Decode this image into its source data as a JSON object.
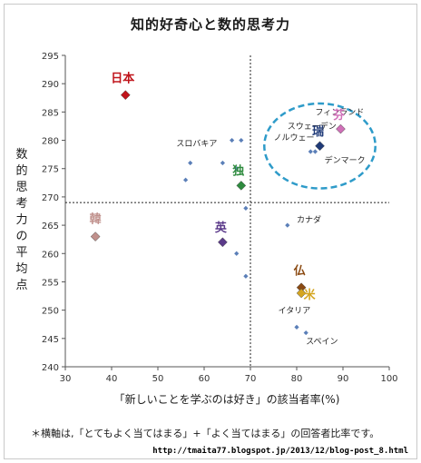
{
  "chart_data": {
    "type": "scatter",
    "title": "知的好奇心と数的思考力",
    "xlabel": "「新しいことを学ぶのは好き」の該当者率(%)",
    "ylabel": "数的思考力の平均点",
    "xlim": [
      30,
      100
    ],
    "ylim": [
      240,
      295
    ],
    "xticks": [
      30,
      40,
      50,
      60,
      70,
      80,
      90,
      100
    ],
    "yticks": [
      240,
      245,
      250,
      255,
      260,
      265,
      270,
      275,
      280,
      285,
      290,
      295
    ],
    "reference_lines": {
      "x": 70,
      "y": 269
    },
    "highlighted_points": [
      {
        "label": "日本",
        "x": 43,
        "y": 288,
        "color": "#c0141b"
      },
      {
        "label": "韓",
        "x": 36.5,
        "y": 263,
        "color": "#c0908c"
      },
      {
        "label": "独",
        "x": 68,
        "y": 272,
        "color": "#2e8b3e"
      },
      {
        "label": "英",
        "x": 64,
        "y": 262,
        "color": "#5b3a8a"
      },
      {
        "label": "瑞",
        "x": 85,
        "y": 279,
        "color": "#1f3a78"
      },
      {
        "label": "芬",
        "x": 89.5,
        "y": 282,
        "color": "#d070b8"
      },
      {
        "label": "仏",
        "x": 81,
        "y": 254,
        "color": "#8b4a12"
      },
      {
        "label": "米",
        "x": 81,
        "y": 253,
        "color": "#d4a520"
      }
    ],
    "small_points": [
      {
        "x": 66,
        "y": 280
      },
      {
        "x": 68,
        "y": 280
      },
      {
        "x": 57,
        "y": 276
      },
      {
        "x": 64,
        "y": 276
      },
      {
        "x": 67,
        "y": 275
      },
      {
        "x": 56,
        "y": 273
      },
      {
        "x": 69,
        "y": 268
      },
      {
        "x": 78,
        "y": 265
      },
      {
        "x": 67,
        "y": 260
      },
      {
        "x": 69,
        "y": 256
      },
      {
        "x": 80,
        "y": 247
      },
      {
        "x": 82,
        "y": 246
      },
      {
        "x": 83,
        "y": 278
      },
      {
        "x": 84,
        "y": 278
      }
    ],
    "small_labels": [
      {
        "text": "フィンランド",
        "x": 84,
        "y": 284.5
      },
      {
        "text": "スウェーデン",
        "x": 78,
        "y": 282
      },
      {
        "text": "ノルウェー",
        "x": 75,
        "y": 280
      },
      {
        "text": "デンマーク",
        "x": 86,
        "y": 276
      },
      {
        "text": "スロバキア",
        "x": 54,
        "y": 279
      },
      {
        "text": "カナダ",
        "x": 80,
        "y": 265.5
      },
      {
        "text": "イタリア",
        "x": 76,
        "y": 249.5
      },
      {
        "text": "スペイン",
        "x": 82,
        "y": 244
      }
    ],
    "highlight_circle": {
      "cx": 85,
      "cy": 279,
      "rx": 12,
      "ry": 7.5,
      "color": "#2e9bc9"
    },
    "grid": false,
    "legend": "none"
  },
  "footnote": "＊横軸は,「とてもよく当てはまる」+「よく当てはまる」の回答者比率です。",
  "source": "http://tmaita77.blogspot.jp/2013/12/blog-post_8.html"
}
